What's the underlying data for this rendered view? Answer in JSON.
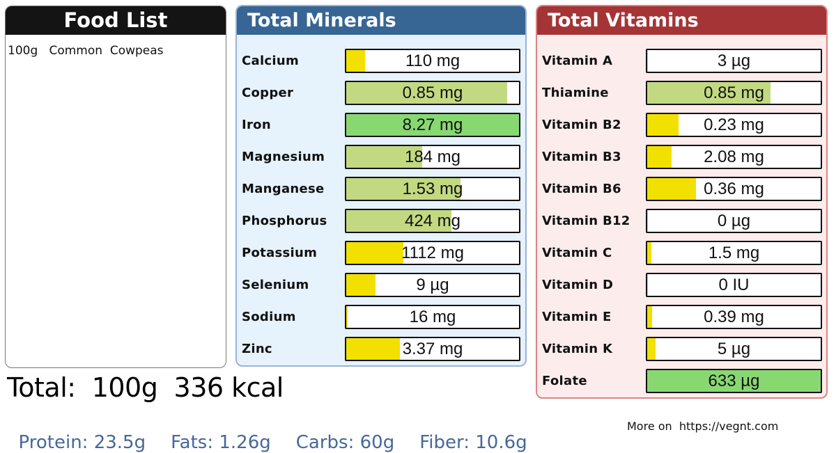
{
  "food_list": {
    "title": "Food List",
    "items": [
      {
        "amount": "100g",
        "name": "Common  Cowpeas",
        "text": "100g   Common  Cowpeas"
      }
    ]
  },
  "minerals": {
    "title": "Total Minerals",
    "items": [
      {
        "label": "Calcium",
        "value": "110 mg",
        "fill_pct": 11,
        "level": "low"
      },
      {
        "label": "Copper",
        "value": "0.85 mg",
        "fill_pct": 93,
        "level": "mid"
      },
      {
        "label": "Iron",
        "value": "8.27 mg",
        "fill_pct": 100,
        "level": "high"
      },
      {
        "label": "Magnesium",
        "value": "184 mg",
        "fill_pct": 44,
        "level": "mid"
      },
      {
        "label": "Manganese",
        "value": "1.53 mg",
        "fill_pct": 66,
        "level": "mid"
      },
      {
        "label": "Phosphorus",
        "value": "424 mg",
        "fill_pct": 61,
        "level": "mid"
      },
      {
        "label": "Potassium",
        "value": "1112 mg",
        "fill_pct": 33,
        "level": "low"
      },
      {
        "label": "Selenium",
        "value": "9 µg",
        "fill_pct": 17,
        "level": "low"
      },
      {
        "label": "Sodium",
        "value": "16 mg",
        "fill_pct": 1,
        "level": "low"
      },
      {
        "label": "Zinc",
        "value": "3.37 mg",
        "fill_pct": 31,
        "level": "low"
      }
    ]
  },
  "vitamins": {
    "title": "Total Vitamins",
    "items": [
      {
        "label": "Vitamin A",
        "value": "3 µg",
        "fill_pct": 0.5,
        "level": "low"
      },
      {
        "label": "Thiamine",
        "value": "0.85 mg",
        "fill_pct": 71,
        "level": "mid"
      },
      {
        "label": "Vitamin B2",
        "value": "0.23 mg",
        "fill_pct": 18,
        "level": "low"
      },
      {
        "label": "Vitamin B3",
        "value": "2.08 mg",
        "fill_pct": 14,
        "level": "low"
      },
      {
        "label": "Vitamin B6",
        "value": "0.36 mg",
        "fill_pct": 28,
        "level": "low"
      },
      {
        "label": "Vitamin B12",
        "value": "0 µg",
        "fill_pct": 0.3,
        "level": "low"
      },
      {
        "label": "Vitamin C",
        "value": "1.5 mg",
        "fill_pct": 2.5,
        "level": "low"
      },
      {
        "label": "Vitamin D",
        "value": "0 IU",
        "fill_pct": 0.3,
        "level": "low"
      },
      {
        "label": "Vitamin E",
        "value": "0.39 mg",
        "fill_pct": 3,
        "level": "low"
      },
      {
        "label": "Vitamin K",
        "value": "5 µg",
        "fill_pct": 5,
        "level": "low"
      },
      {
        "label": "Folate",
        "value": "633 µg",
        "fill_pct": 100,
        "level": "high"
      }
    ]
  },
  "totals": {
    "line": "Total:  100g  336 kcal",
    "weight": "100g",
    "kcal": "336 kcal"
  },
  "macros": [
    {
      "text": "Protein: 23.5g"
    },
    {
      "text": "Fats: 1.26g"
    },
    {
      "text": "Carbs: 60g"
    },
    {
      "text": "Fiber: 10.6g"
    }
  ],
  "footer": {
    "more_on": "More on  https://vegnt.com"
  },
  "colors": {
    "fill_low": "#f2e000",
    "fill_mid": "#c2d982",
    "fill_high": "#88d872",
    "minerals_header": "#376594",
    "vitamins_header": "#a43435",
    "macro_text": "#46679a"
  }
}
